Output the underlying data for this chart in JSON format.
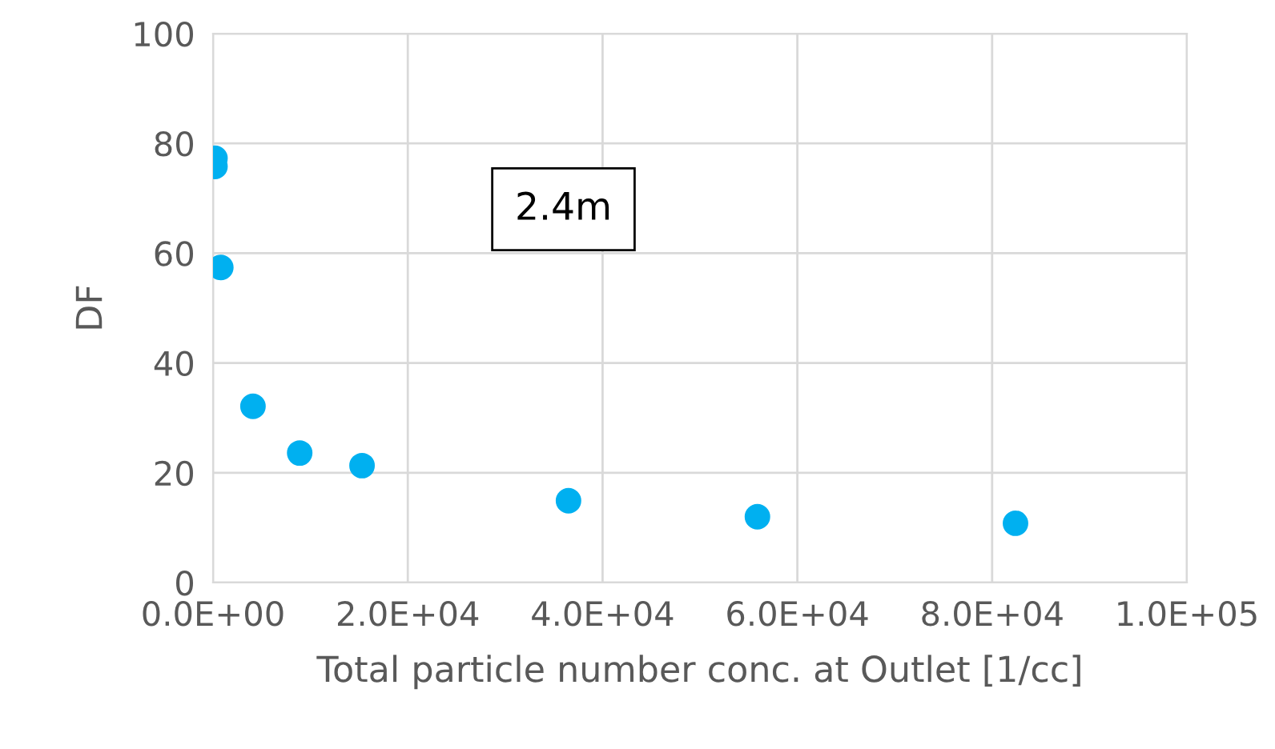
{
  "chart_data": {
    "type": "scatter",
    "xlabel": "Total particle number conc. at Outlet [1/cc]",
    "ylabel": "DF",
    "x": [
      200,
      200,
      800,
      4100,
      8900,
      15300,
      36500,
      55900,
      82400
    ],
    "series": [
      {
        "color": "#00b0f0",
        "values": [
          77.3,
          75.8,
          57.4,
          32.1,
          23.6,
          21.3,
          14.9,
          12.0,
          10.8
        ]
      }
    ],
    "xlim": [
      0,
      100000
    ],
    "ylim": [
      0,
      100
    ],
    "xticks": [
      {
        "value": 0,
        "label": "0.0E+00"
      },
      {
        "value": 20000,
        "label": "2.0E+04"
      },
      {
        "value": 40000,
        "label": "4.0E+04"
      },
      {
        "value": 60000,
        "label": "6.0E+04"
      },
      {
        "value": 80000,
        "label": "8.0E+04"
      },
      {
        "value": 100000,
        "label": "1.0E+05"
      }
    ],
    "yticks": [
      0,
      20,
      40,
      60,
      80,
      100
    ],
    "annotations": [
      "2.4m"
    ],
    "grid": true,
    "marker": "circle",
    "legend": false
  }
}
